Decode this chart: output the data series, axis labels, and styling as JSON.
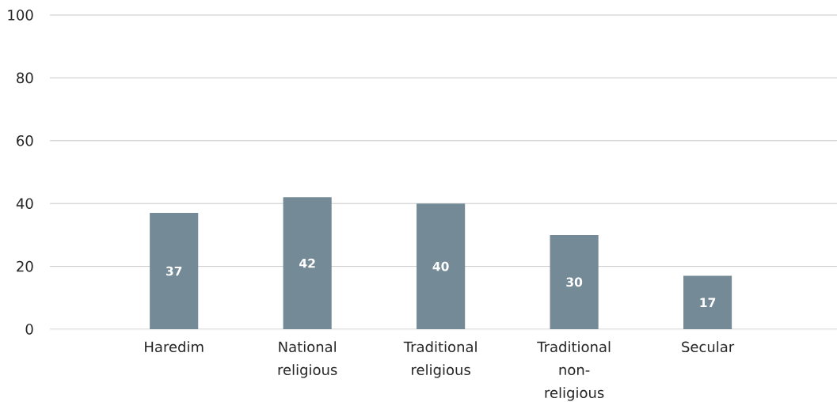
{
  "chart_data": {
    "type": "bar",
    "categories": [
      "Haredim",
      "National religious",
      "Traditional religious",
      "Traditional non-religious",
      "Secular"
    ],
    "values": [
      37,
      42,
      40,
      30,
      17
    ],
    "color": "#758a97",
    "ylim": [
      0,
      100
    ],
    "yticks": [
      0,
      20,
      40,
      60,
      80,
      100
    ],
    "grid": "y",
    "data_labels": true
  }
}
